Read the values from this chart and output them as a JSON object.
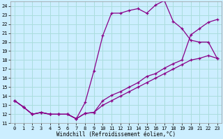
{
  "xlabel": "Windchill (Refroidissement éolien,°C)",
  "bg_color": "#cceeff",
  "grid_color": "#aadddd",
  "line_color": "#880088",
  "xlim": [
    -0.5,
    23.5
  ],
  "ylim": [
    11,
    24.5
  ],
  "yticks": [
    11,
    12,
    13,
    14,
    15,
    16,
    17,
    18,
    19,
    20,
    21,
    22,
    23,
    24
  ],
  "xticks": [
    0,
    1,
    2,
    3,
    4,
    5,
    6,
    7,
    8,
    9,
    10,
    11,
    12,
    13,
    14,
    15,
    16,
    17,
    18,
    19,
    20,
    21,
    22,
    23
  ],
  "series1_x": [
    0,
    1,
    2,
    3,
    4,
    5,
    6,
    7,
    8,
    9,
    10,
    11,
    12,
    13,
    14,
    15,
    16,
    17,
    18,
    19,
    20,
    21,
    22,
    23
  ],
  "series1_y": [
    13.5,
    12.8,
    12.0,
    12.2,
    12.0,
    12.0,
    12.0,
    11.5,
    13.3,
    16.8,
    20.7,
    23.2,
    23.2,
    23.5,
    23.7,
    23.2,
    24.1,
    24.6,
    22.3,
    21.5,
    20.2,
    20.0,
    20.0,
    18.2
  ],
  "series2_x": [
    0,
    1,
    2,
    3,
    4,
    5,
    6,
    7,
    8,
    9,
    10,
    11,
    12,
    13,
    14,
    15,
    16,
    17,
    18,
    19,
    20,
    21,
    22,
    23
  ],
  "series2_y": [
    13.5,
    12.8,
    12.0,
    12.2,
    12.0,
    12.0,
    12.0,
    11.5,
    12.1,
    12.2,
    13.5,
    14.1,
    14.5,
    15.0,
    15.5,
    16.2,
    16.5,
    17.1,
    17.6,
    18.0,
    20.8,
    21.5,
    22.2,
    22.5
  ],
  "series3_x": [
    0,
    1,
    2,
    3,
    4,
    5,
    6,
    7,
    8,
    9,
    10,
    11,
    12,
    13,
    14,
    15,
    16,
    17,
    18,
    19,
    20,
    21,
    22,
    23
  ],
  "series3_y": [
    13.5,
    12.8,
    12.0,
    12.2,
    12.0,
    12.0,
    12.0,
    11.5,
    12.1,
    12.2,
    13.0,
    13.5,
    14.0,
    14.5,
    15.0,
    15.5,
    16.0,
    16.5,
    17.0,
    17.5,
    18.0,
    18.2,
    18.5,
    18.2
  ],
  "marker": "+"
}
